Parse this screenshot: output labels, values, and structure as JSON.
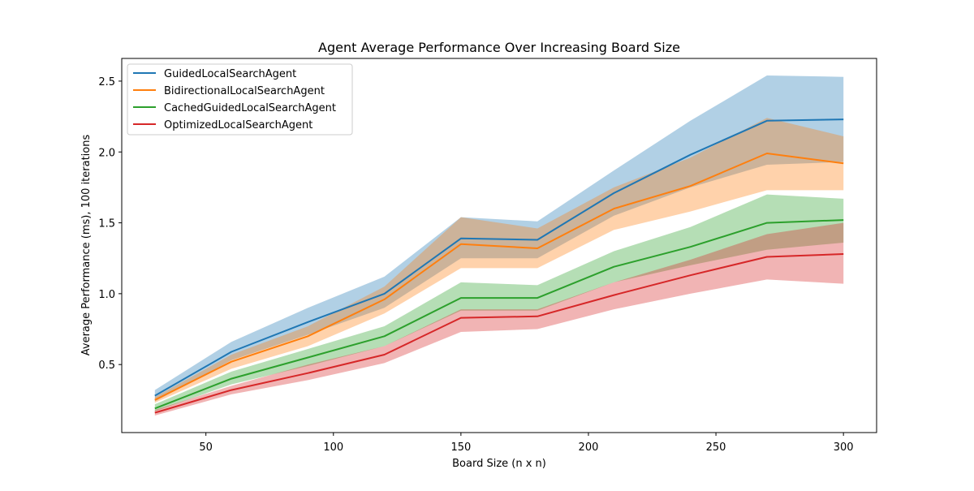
{
  "chart_data": {
    "type": "line",
    "title": "Agent Average Performance Over Increasing Board Size",
    "xlabel": "Board Size (n x n)",
    "ylabel": "Average Performance (ms), 100 iterations",
    "xlim": [
      17,
      313
    ],
    "ylim": [
      0.02,
      2.66
    ],
    "xticks": [
      50,
      100,
      150,
      200,
      250,
      300
    ],
    "yticks": [
      0.5,
      1.0,
      1.5,
      2.0,
      2.5
    ],
    "xtick_labels": [
      "50",
      "100",
      "150",
      "200",
      "250",
      "300"
    ],
    "ytick_labels": [
      "0.5",
      "1.0",
      "1.5",
      "2.0",
      "2.5"
    ],
    "grid": false,
    "legend_position": "top-left",
    "x": [
      30,
      60,
      90,
      120,
      150,
      180,
      210,
      240,
      270,
      300
    ],
    "series": [
      {
        "name": "GuidedLocalSearchAgent",
        "color": "#1f77b4",
        "values": [
          0.28,
          0.59,
          0.8,
          1.0,
          1.39,
          1.38,
          1.71,
          1.98,
          2.22,
          2.23
        ],
        "upper": [
          0.32,
          0.66,
          0.9,
          1.12,
          1.54,
          1.51,
          1.87,
          2.22,
          2.54,
          2.53
        ],
        "lower": [
          0.24,
          0.53,
          0.71,
          0.9,
          1.25,
          1.25,
          1.55,
          1.75,
          1.91,
          1.93
        ]
      },
      {
        "name": "BidirectionalLocalSearchAgent",
        "color": "#ff7f0e",
        "values": [
          0.25,
          0.52,
          0.7,
          0.96,
          1.35,
          1.32,
          1.6,
          1.76,
          1.99,
          1.92
        ],
        "upper": [
          0.27,
          0.57,
          0.77,
          1.05,
          1.54,
          1.46,
          1.75,
          1.96,
          2.24,
          2.11
        ],
        "lower": [
          0.23,
          0.47,
          0.63,
          0.86,
          1.18,
          1.18,
          1.45,
          1.58,
          1.73,
          1.73
        ]
      },
      {
        "name": "CachedGuidedLocalSearchAgent",
        "color": "#2ca02c",
        "values": [
          0.19,
          0.4,
          0.55,
          0.7,
          0.97,
          0.97,
          1.19,
          1.33,
          1.5,
          1.52
        ],
        "upper": [
          0.22,
          0.45,
          0.61,
          0.77,
          1.08,
          1.06,
          1.3,
          1.47,
          1.7,
          1.67
        ],
        "lower": [
          0.17,
          0.36,
          0.49,
          0.63,
          0.88,
          0.88,
          1.08,
          1.2,
          1.31,
          1.36
        ]
      },
      {
        "name": "OptimizedLocalSearchAgent",
        "color": "#d62728",
        "values": [
          0.16,
          0.32,
          0.44,
          0.57,
          0.83,
          0.84,
          0.99,
          1.13,
          1.26,
          1.28
        ],
        "upper": [
          0.18,
          0.35,
          0.5,
          0.63,
          0.89,
          0.89,
          1.08,
          1.24,
          1.42,
          1.5
        ],
        "lower": [
          0.14,
          0.29,
          0.39,
          0.51,
          0.73,
          0.75,
          0.89,
          1.0,
          1.1,
          1.07
        ]
      }
    ]
  }
}
